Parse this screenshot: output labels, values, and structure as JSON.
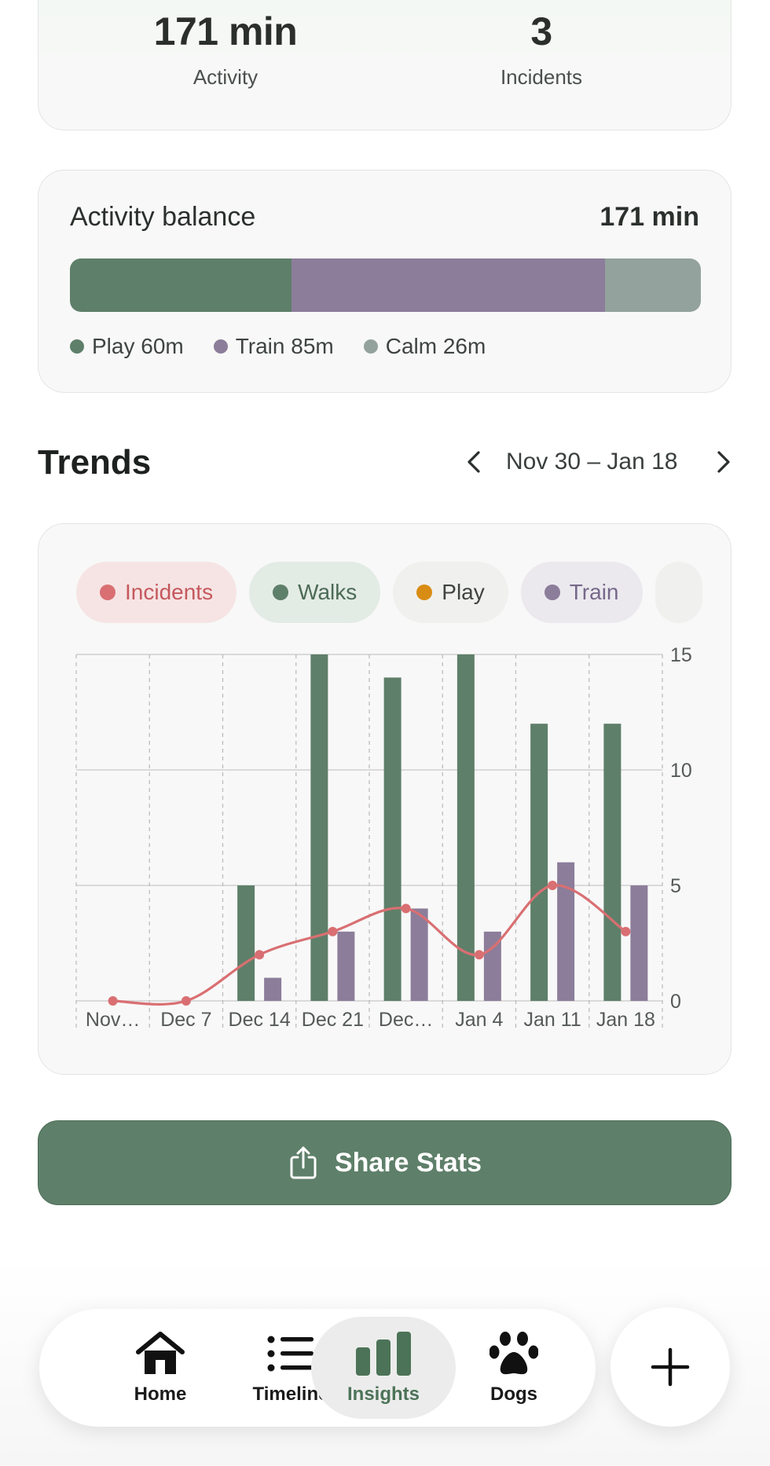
{
  "summary": {
    "activity_value": "171 min",
    "activity_label": "Activity",
    "incidents_value": "3",
    "incidents_label": "Incidents"
  },
  "balance": {
    "title": "Activity balance",
    "total": "171 min",
    "segments": [
      {
        "label": "Play 60m",
        "minutes": 60,
        "color": "#5e7f69"
      },
      {
        "label": "Train 85m",
        "minutes": 85,
        "color": "#8c7d9a"
      },
      {
        "label": "Calm 26m",
        "minutes": 26,
        "color": "#93a29c"
      }
    ]
  },
  "trends": {
    "title": "Trends",
    "range": "Nov 30 – Jan 18"
  },
  "chips": [
    {
      "label": "Incidents",
      "dot": "#d96f72",
      "bg": "#f6e4e4",
      "text": "#c5585c"
    },
    {
      "label": "Walks",
      "dot": "#5e7f69",
      "bg": "#e3ebe5",
      "text": "#4b6a55"
    },
    {
      "label": "Play",
      "dot": "#d98c14",
      "bg": "#f0f0ef",
      "text": "#40443f"
    },
    {
      "label": "Train",
      "dot": "#8c7d9a",
      "bg": "#ebe9ee",
      "text": "#76688a"
    },
    {
      "label": "",
      "dot": "",
      "bg": "#f0f0ef",
      "text": "#40443f"
    }
  ],
  "chart_data": {
    "type": "bar",
    "categories": [
      "Nov…",
      "Dec 7",
      "Dec 14",
      "Dec 21",
      "Dec…",
      "Jan 4",
      "Jan 11",
      "Jan 18"
    ],
    "ylim": [
      0,
      15
    ],
    "yticks": [
      0,
      5,
      10,
      15
    ],
    "grid": true,
    "series": [
      {
        "name": "Walks",
        "kind": "bar",
        "color": "#5e7f69",
        "values": [
          0,
          0,
          5,
          15,
          14,
          15,
          12,
          12
        ]
      },
      {
        "name": "Train",
        "kind": "bar",
        "color": "#8c7d9a",
        "values": [
          0,
          0,
          1,
          3,
          4,
          3,
          6,
          5
        ]
      },
      {
        "name": "Incidents",
        "kind": "line",
        "color": "#d96f72",
        "values": [
          0,
          0,
          2,
          3,
          4,
          2,
          5,
          3
        ]
      }
    ]
  },
  "share_button": {
    "label": "Share Stats"
  },
  "nav": {
    "items": [
      {
        "label": "Home",
        "icon": "house-icon"
      },
      {
        "label": "Timeline",
        "icon": "list-icon"
      },
      {
        "label": "Insights",
        "icon": "bar-chart-icon",
        "active": true
      },
      {
        "label": "Dogs",
        "icon": "paw-icon"
      }
    ],
    "add_icon": "plus-icon"
  }
}
